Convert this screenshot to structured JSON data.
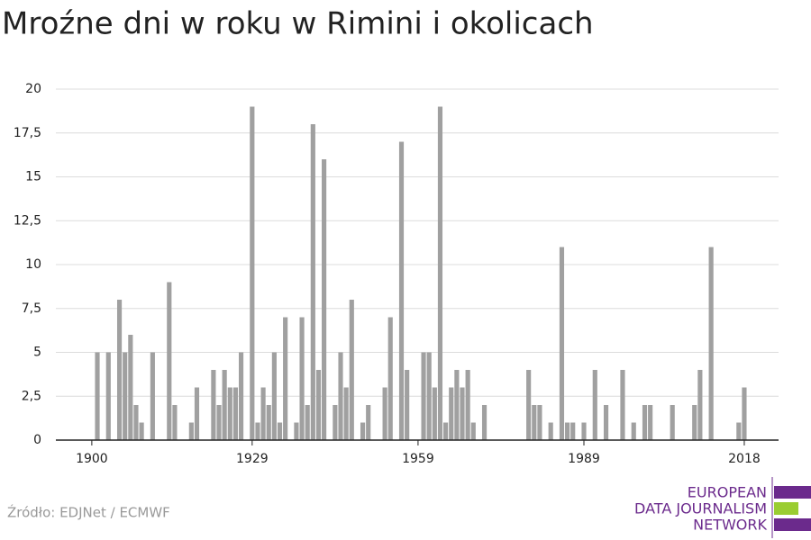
{
  "chart_data": {
    "type": "bar",
    "title": "Mroźne dni w roku w Rimini i okolicach",
    "x": [
      1901,
      1903,
      1905,
      1906,
      1907,
      1908,
      1909,
      1911,
      1914,
      1915,
      1918,
      1919,
      1922,
      1923,
      1924,
      1925,
      1926,
      1927,
      1929,
      1930,
      1931,
      1932,
      1933,
      1934,
      1935,
      1937,
      1938,
      1939,
      1940,
      1941,
      1942,
      1944,
      1945,
      1946,
      1947,
      1949,
      1950,
      1953,
      1954,
      1956,
      1957,
      1960,
      1961,
      1962,
      1963,
      1964,
      1965,
      1966,
      1967,
      1968,
      1969,
      1971,
      1979,
      1980,
      1981,
      1983,
      1985,
      1986,
      1987,
      1989,
      1991,
      1993,
      1996,
      1998,
      2000,
      2001,
      2005,
      2009,
      2010,
      2012,
      2017,
      2018
    ],
    "values": [
      5,
      5,
      8,
      5,
      6,
      2,
      1,
      5,
      9,
      2,
      1,
      3,
      4,
      2,
      4,
      3,
      3,
      5,
      19,
      1,
      3,
      2,
      5,
      1,
      7,
      1,
      7,
      2,
      18,
      4,
      16,
      2,
      5,
      3,
      8,
      1,
      2,
      3,
      7,
      17,
      4,
      5,
      5,
      3,
      19,
      1,
      3,
      4,
      3,
      4,
      1,
      2,
      4,
      2,
      2,
      1,
      11,
      1,
      1,
      1,
      4,
      2,
      4,
      1,
      2,
      2,
      2,
      2,
      4,
      11,
      1,
      3
    ],
    "color": "#a0a0a0",
    "xlim": [
      1893.5,
      2024.2
    ],
    "xticks": [
      1900,
      1929,
      1959,
      1989,
      2018
    ],
    "ylim": [
      0,
      20
    ],
    "yticks": [
      0,
      {
        "value": 2.5,
        "label": "2,5"
      },
      5,
      {
        "value": 7.5,
        "label": "7,5"
      },
      10,
      {
        "value": 12.5,
        "label": "12,5"
      },
      15,
      {
        "value": 17.5,
        "label": "17,5"
      },
      20
    ],
    "grid": true
  },
  "source": "Źródło: EDJNet / ECMWF",
  "logo": {
    "lines": [
      "EUROPEAN",
      "DATA JOURNALISM",
      "NETWORK"
    ]
  }
}
